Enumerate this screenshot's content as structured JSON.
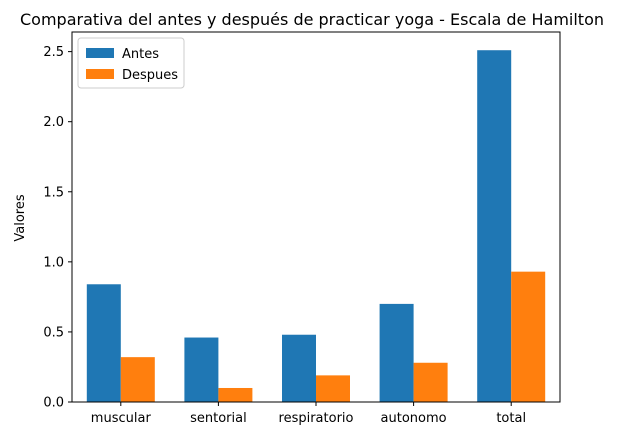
{
  "chart_data": {
    "type": "bar",
    "title": "Comparativa del antes y después de practicar yoga - Escala de Hamilton",
    "xlabel": "",
    "ylabel": "Valores",
    "categories": [
      "muscular",
      "sentorial",
      "respiratorio",
      "autonomo",
      "total"
    ],
    "series": [
      {
        "name": "Antes",
        "color": "#1f77b4",
        "values": [
          0.84,
          0.46,
          0.48,
          0.7,
          2.51
        ]
      },
      {
        "name": "Despues",
        "color": "#ff7f0e",
        "values": [
          0.32,
          0.1,
          0.19,
          0.28,
          0.93
        ]
      }
    ],
    "ylim": [
      0,
      2.64
    ],
    "yticks": [
      "0.0",
      "0.5",
      "1.0",
      "1.5",
      "2.0",
      "2.5"
    ],
    "grid": false,
    "legend": "top-left"
  }
}
